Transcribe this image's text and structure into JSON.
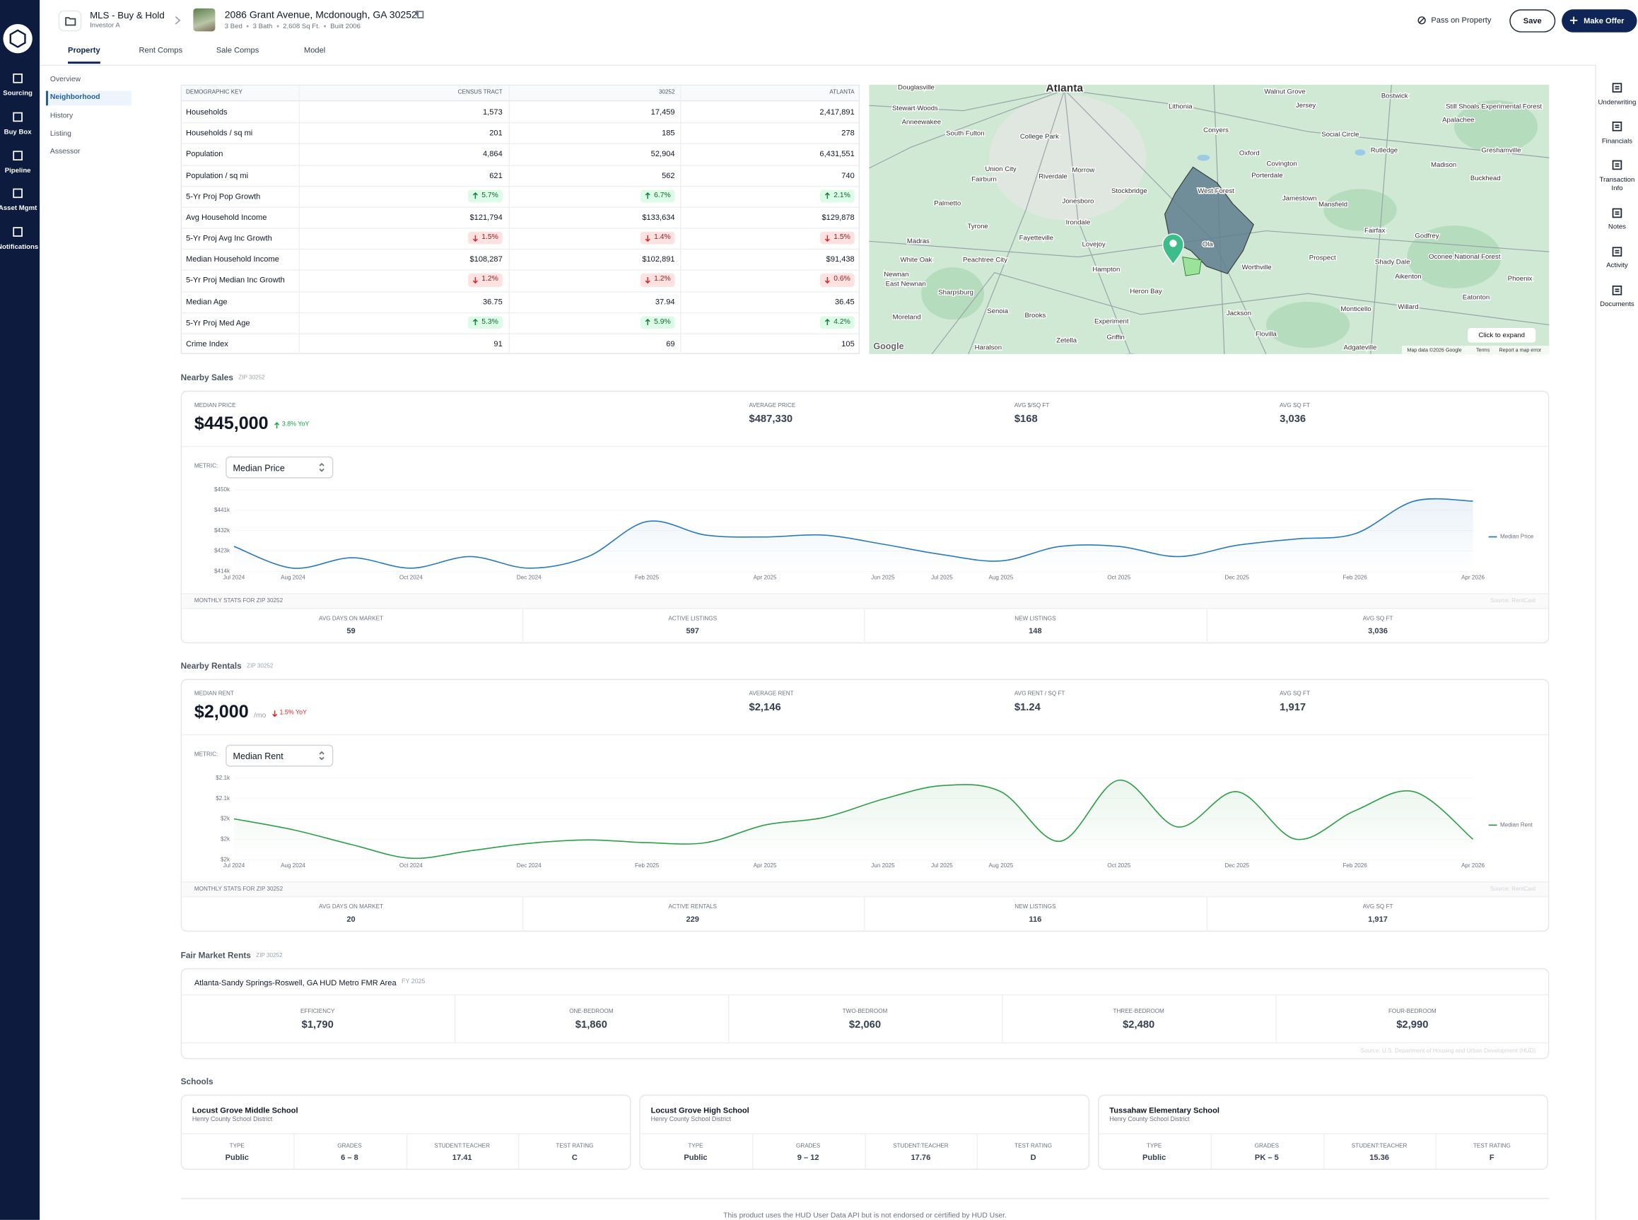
{
  "nav": {
    "items": [
      "Sourcing",
      "Buy Box",
      "Pipeline",
      "Asset Mgmt",
      "Notifications"
    ]
  },
  "header": {
    "workspace": "MLS - Buy & Hold",
    "investor": "Investor A",
    "address": "2086 Grant Avenue, Mcdonough, GA 30252",
    "details": [
      "3 Bed",
      "3 Bath",
      "2,608 Sq Ft.",
      "Built 2006"
    ],
    "actions": {
      "pass": "Pass on Property",
      "save": "Save",
      "offer": "Make Offer"
    },
    "tabs": [
      "Property",
      "Rent Comps",
      "Sale Comps",
      "Model"
    ],
    "active_tab": 0
  },
  "subnav": {
    "items": [
      "Overview",
      "Neighborhood",
      "History",
      "Listing",
      "Assessor"
    ],
    "active": 1
  },
  "rail": {
    "items": [
      "Underwriting",
      "Financials",
      "Transaction Info",
      "Notes",
      "Activity",
      "Documents"
    ]
  },
  "demographics": {
    "headers": [
      "DEMOGRAPHIC KEY",
      "CENSUS TRACT",
      "30252",
      "ATLANTA"
    ],
    "rows": [
      [
        "Households",
        "1,573",
        "17,459",
        "2,417,891"
      ],
      [
        "Households / sq mi",
        "201",
        "185",
        "278"
      ],
      [
        "Population",
        "4,864",
        "52,904",
        "6,431,551"
      ],
      [
        "Population / sq mi",
        "621",
        "562",
        "740"
      ],
      [
        "5-Yr Proj Pop Growth",
        {
          "text": "5.7%",
          "direction": "up"
        },
        {
          "text": "6.7%",
          "direction": "up"
        },
        {
          "text": "2.1%",
          "direction": "up"
        }
      ],
      [
        "Avg Household Income",
        "$121,794",
        "$133,634",
        "$129,878"
      ],
      [
        "5-Yr Proj Avg Inc Growth",
        {
          "text": "1.5%",
          "direction": "down"
        },
        {
          "text": "1.4%",
          "direction": "down"
        },
        {
          "text": "1.5%",
          "direction": "down"
        }
      ],
      [
        "Median Household Income",
        "$108,287",
        "$102,891",
        "$91,438"
      ],
      [
        "5-Yr Proj Median Inc Growth",
        {
          "text": "1.2%",
          "direction": "down"
        },
        {
          "text": "1.2%",
          "direction": "down"
        },
        {
          "text": "0.6%",
          "direction": "down"
        }
      ],
      [
        "Median Age",
        "36.75",
        "37.94",
        "36.45"
      ],
      [
        "5-Yr Proj Med Age",
        {
          "text": "5.3%",
          "direction": "up"
        },
        {
          "text": "5.9%",
          "direction": "up"
        },
        {
          "text": "4.2%",
          "direction": "up"
        }
      ],
      [
        "Crime Index",
        "91",
        "69",
        "105"
      ]
    ]
  },
  "map": {
    "labels": [
      "Atlanta",
      "Douglasville",
      "Stewart Woods",
      "Anneewakee",
      "South Fulton",
      "College Park",
      "Lithonia",
      "Walnut Grove",
      "Jersey",
      "Bostwick",
      "Still Shoals Experimental Forest",
      "Conyers",
      "Social Circle",
      "Apalachee",
      "Union City",
      "Morrow",
      "Riverdale",
      "Stockbridge",
      "West Forest",
      "Oxford",
      "Covington",
      "Porterdale",
      "Rutledge",
      "Madison",
      "Greshamville",
      "Buckhead",
      "Fairburn",
      "Palmetto",
      "Tyrone",
      "Jonesboro",
      "Irondale",
      "Fayetteville",
      "Lovejoy",
      "Hampton",
      "Ola",
      "Jamestown",
      "Mansfield",
      "Fairfax",
      "Godfrey",
      "Madras",
      "White Oak",
      "Peachtree City",
      "Newnan",
      "East Newnan",
      "Sharpsburg",
      "Heron Bay",
      "Worthville",
      "Prospect",
      "Shady Dale",
      "Oconee National Forest",
      "Aikenton",
      "Phoenix",
      "Moreland",
      "Senoia",
      "Brooks",
      "Experiment",
      "Griffin",
      "Jackson",
      "Zetella",
      "Haralson",
      "Monticello",
      "Willard",
      "Eatonton",
      "Flovilla",
      "Adgateville"
    ],
    "expand": "Click to expand",
    "attribution": "Map data ©2026 Google",
    "terms": "Terms",
    "report": "Report a map error",
    "logo": "Google"
  },
  "nearby_sales": {
    "title": "Nearby Sales",
    "zip": "ZIP 30252",
    "median": {
      "label": "MEDIAN PRICE",
      "value": "$445,000",
      "change": "3.8% YoY",
      "direction": "up"
    },
    "stats": [
      {
        "label": "AVERAGE PRICE",
        "value": "$487,330"
      },
      {
        "label": "AVG $/SQ FT",
        "value": "$168"
      },
      {
        "label": "AVG SQ FT",
        "value": "3,036"
      }
    ],
    "metric_label": "METRIC:",
    "metric": "Median Price",
    "chart": {
      "type": "line",
      "x": [
        "Jul 2024",
        "Aug 2024",
        null,
        "Oct 2024",
        null,
        "Dec 2024",
        null,
        "Feb 2025",
        null,
        "Apr 2025",
        null,
        "Jun 2025",
        "Jul 2025",
        "Aug 2025",
        null,
        "Oct 2025",
        null,
        "Dec 2025",
        null,
        "Feb 2026",
        null,
        "Apr 2026"
      ],
      "series": [
        {
          "name": "Median Price",
          "color": "#2b7bb9",
          "values": [
            425000,
            415400,
            420000,
            415400,
            420500,
            415400,
            420500,
            436000,
            430000,
            429200,
            430000,
            426000,
            421400,
            418600,
            425000,
            425000,
            420500,
            425500,
            428300,
            430600,
            445000,
            445000
          ]
        }
      ],
      "ylim": [
        414000,
        450000
      ],
      "yticks": [
        {
          "value": 414000,
          "label": "$414k"
        },
        {
          "value": 423000,
          "label": "$423k"
        },
        {
          "value": 432000,
          "label": "$432k"
        },
        {
          "value": 441000,
          "label": "$441k"
        },
        {
          "value": 450000,
          "label": "$450k"
        }
      ]
    },
    "monthly_label": "MONTHLY STATS FOR ZIP 30252",
    "source": "Source: RentCast",
    "monthly": [
      {
        "label": "AVG DAYS ON MARKET",
        "value": "59"
      },
      {
        "label": "ACTIVE LISTINGS",
        "value": "597"
      },
      {
        "label": "NEW LISTINGS",
        "value": "148"
      },
      {
        "label": "AVG SQ FT",
        "value": "3,036"
      }
    ]
  },
  "nearby_rentals": {
    "title": "Nearby Rentals",
    "zip": "ZIP 30252",
    "median": {
      "label": "MEDIAN RENT",
      "value": "$2,000",
      "unit": "/mo",
      "change": "1.5% YoY",
      "direction": "down"
    },
    "stats": [
      {
        "label": "AVERAGE RENT",
        "value": "$2,146"
      },
      {
        "label": "AVG RENT / SQ FT",
        "value": "$1.24"
      },
      {
        "label": "AVG SQ FT",
        "value": "1,917"
      }
    ],
    "metric_label": "METRIC:",
    "metric": "Median Rent",
    "chart": {
      "type": "line",
      "x": [
        "Jul 2024",
        "Aug 2024",
        null,
        "Oct 2024",
        null,
        "Dec 2024",
        null,
        "Feb 2025",
        null,
        "Apr 2025",
        null,
        "Jun 2025",
        "Jul 2025",
        "Aug 2025",
        null,
        "Oct 2025",
        null,
        "Dec 2025",
        null,
        "Feb 2026",
        null,
        "Apr 2026"
      ],
      "series": [
        {
          "name": "Median Rent",
          "color": "#2e9e48",
          "values": [
            2030,
            2014,
            1992,
            1972,
            1983,
            1994,
            1999,
            1995,
            1995,
            2021,
            2032,
            2059,
            2079,
            2070,
            1997,
            2087,
            2018,
            2070,
            2000,
            2042,
            2070,
            2000
          ]
        }
      ],
      "ylim": [
        1970,
        2090
      ],
      "yticks": [
        {
          "value": 1970,
          "label": "$2k"
        },
        {
          "value": 2000,
          "label": "$2k"
        },
        {
          "value": 2030,
          "label": "$2k"
        },
        {
          "value": 2060,
          "label": "$2.1k"
        },
        {
          "value": 2090,
          "label": "$2.1k"
        }
      ]
    },
    "monthly_label": "MONTHLY STATS FOR ZIP 30252",
    "source": "Source: RentCast",
    "monthly": [
      {
        "label": "AVG DAYS ON MARKET",
        "value": "20"
      },
      {
        "label": "ACTIVE RENTALS",
        "value": "229"
      },
      {
        "label": "NEW LISTINGS",
        "value": "116"
      },
      {
        "label": "AVG SQ FT",
        "value": "1,917"
      }
    ]
  },
  "fmr": {
    "title": "Fair Market Rents",
    "zip": "ZIP 30252",
    "area": "Atlanta-Sandy Springs-Roswell, GA HUD Metro FMR Area",
    "year": "FY 2025",
    "rents": [
      {
        "label": "EFFICIENCY",
        "value": "$1,790"
      },
      {
        "label": "ONE-BEDROOM",
        "value": "$1,860"
      },
      {
        "label": "TWO-BEDROOM",
        "value": "$2,060"
      },
      {
        "label": "THREE-BEDROOM",
        "value": "$2,480"
      },
      {
        "label": "FOUR-BEDROOM",
        "value": "$2,990"
      }
    ],
    "source": "Source: U.S. Department of Housing and Urban Development (HUD)"
  },
  "schools": {
    "title": "Schools",
    "list": [
      {
        "name": "Locust Grove Middle School",
        "district": "Henry County School District",
        "fields": [
          {
            "label": "TYPE",
            "value": "Public"
          },
          {
            "label": "GRADES",
            "value": "6 – 8"
          },
          {
            "label": "STUDENT:TEACHER",
            "value": "17.41"
          },
          {
            "label": "TEST RATING",
            "value": "C"
          }
        ]
      },
      {
        "name": "Locust Grove High School",
        "district": "Henry County School District",
        "fields": [
          {
            "label": "TYPE",
            "value": "Public"
          },
          {
            "label": "GRADES",
            "value": "9 – 12"
          },
          {
            "label": "STUDENT:TEACHER",
            "value": "17.76"
          },
          {
            "label": "TEST RATING",
            "value": "D"
          }
        ]
      },
      {
        "name": "Tussahaw Elementary School",
        "district": "Henry County School District",
        "fields": [
          {
            "label": "TYPE",
            "value": "Public"
          },
          {
            "label": "GRADES",
            "value": "PK – 5"
          },
          {
            "label": "STUDENT:TEACHER",
            "value": "15.36"
          },
          {
            "label": "TEST RATING",
            "value": "F"
          }
        ]
      }
    ]
  },
  "footer": {
    "notice": "This product uses the HUD User Data API but is not endorsed or certified by HUD User."
  }
}
